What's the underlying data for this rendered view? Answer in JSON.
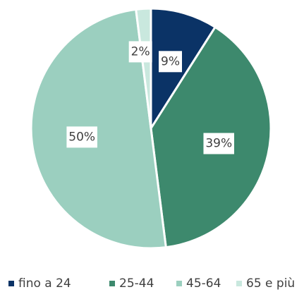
{
  "chart_data": {
    "type": "pie",
    "categories": [
      "fino a 24",
      "25-44",
      "45-64",
      "65 e più"
    ],
    "values": [
      9,
      39,
      50,
      2
    ],
    "value_labels": [
      "9%",
      "39%",
      "50%",
      "2%"
    ],
    "colors": [
      "#0b3366",
      "#3d896d",
      "#9bcfbf",
      "#c9e8de"
    ],
    "legend": "bottom"
  }
}
